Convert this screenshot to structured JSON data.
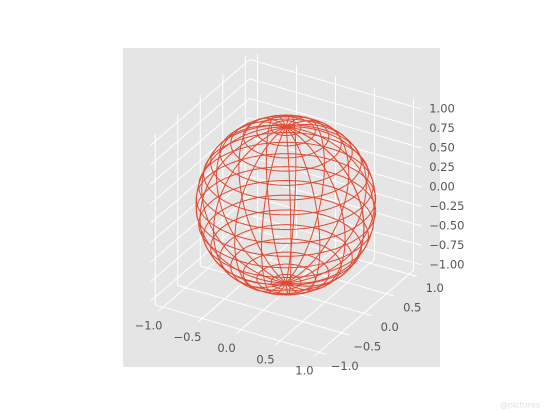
{
  "chart_data": {
    "type": "wireframe3d",
    "radius": 1,
    "meridians": 20,
    "parallels": 20,
    "color": "#e24a33",
    "xlim": [
      -1,
      1
    ],
    "ylim": [
      -1,
      1
    ],
    "zlim": [
      -1,
      1
    ],
    "xticks": [
      {
        "value": -1,
        "label": "−1.0"
      },
      {
        "value": -0.5,
        "label": "−0.5"
      },
      {
        "value": 0,
        "label": "0.0"
      },
      0.5,
      {
        "value": 1,
        "label": "1.0"
      }
    ],
    "yticks": [
      {
        "value": -1,
        "label": "−1.0"
      },
      {
        "value": -0.5,
        "label": "−0.5"
      },
      {
        "value": 0,
        "label": "0.0"
      },
      0.5,
      {
        "value": 1,
        "label": "1.0"
      }
    ],
    "zticks": [
      {
        "value": -1,
        "label": "−1.00"
      },
      {
        "value": -0.75,
        "label": "−0.75"
      },
      {
        "value": -0.5,
        "label": "−0.50"
      },
      {
        "value": -0.25,
        "label": "−0.25"
      },
      {
        "value": 0,
        "label": "0.00"
      },
      0.25,
      {
        "value": 0.5,
        "label": "0.50"
      },
      0.75,
      {
        "value": 1,
        "label": "1.00"
      }
    ],
    "grid": true,
    "watermark": "@pictures"
  }
}
